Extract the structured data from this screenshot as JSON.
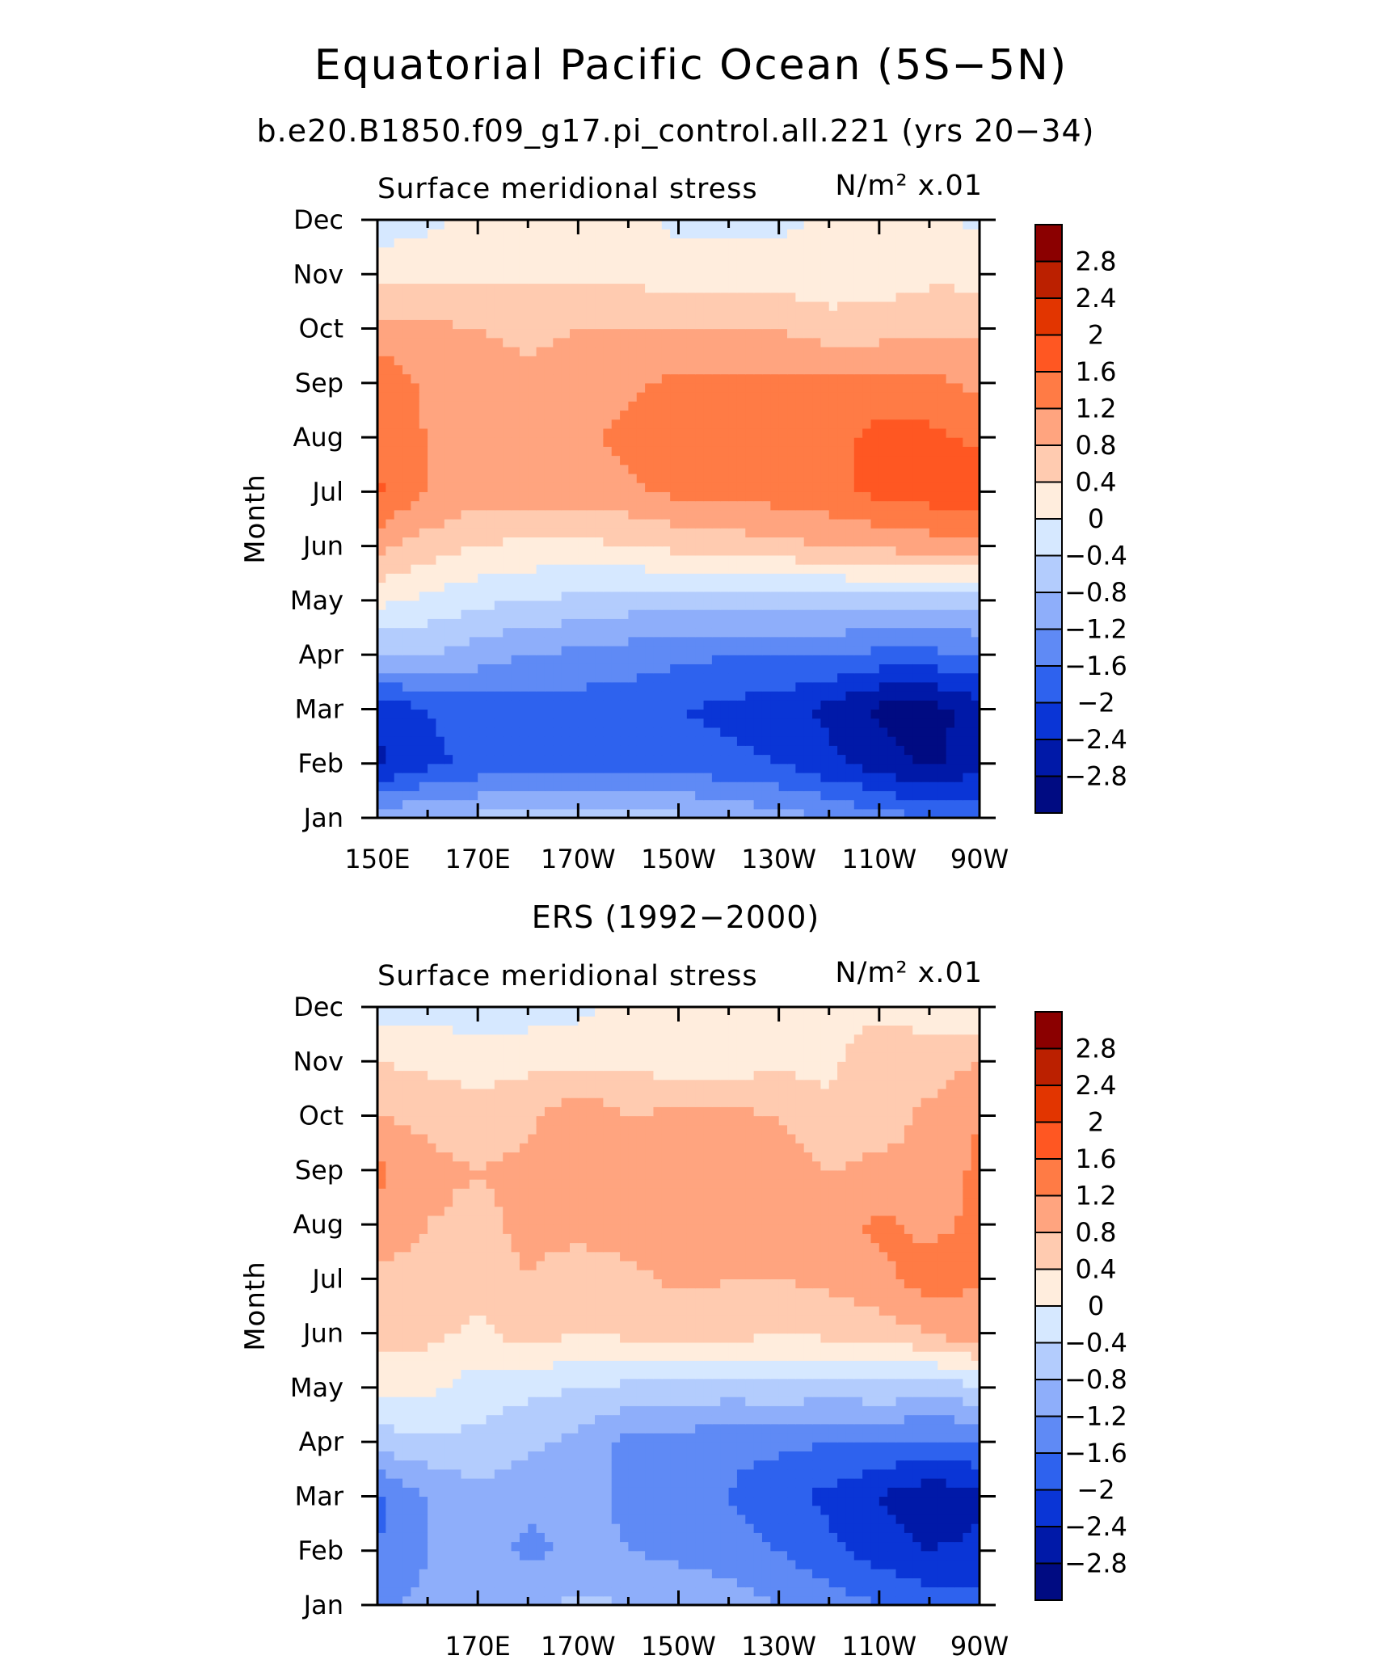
{
  "figure": {
    "title": "Equatorial Pacific Ocean (5S−5N)",
    "subtitle": "b.e20.B1850.f09_g17.pi_control.all.221 (yrs 20−34)",
    "middle_title": "ERS (1992−2000)"
  },
  "colorbar": {
    "levels": [
      "2.8",
      "2.4",
      "2",
      "1.6",
      "1.2",
      "0.8",
      "0.4",
      "0",
      "−0.4",
      "−0.8",
      "−1.2",
      "−1.6",
      "−2",
      "−2.4",
      "−2.8"
    ],
    "colors": [
      "#8b0000",
      "#bb2000",
      "#e23500",
      "#ff5722",
      "#ff7b45",
      "#ffa47f",
      "#ffcbb0",
      "#ffeddd",
      "#d6e8ff",
      "#b3ccfd",
      "#8eaefa",
      "#5f8af5",
      "#2e62ee",
      "#0a35d6",
      "#0019a8",
      "#000b82"
    ]
  },
  "chart_data": [
    {
      "type": "heatmap",
      "title": "Surface meridional stress",
      "units": "N/m² x.01",
      "xlabel": "",
      "ylabel": "Month",
      "x_ticks": [
        "150E",
        "170E",
        "170W",
        "150W",
        "130W",
        "110W",
        "90W"
      ],
      "y_ticks": [
        "Jan",
        "Feb",
        "Mar",
        "Apr",
        "May",
        "Jun",
        "Jul",
        "Aug",
        "Sep",
        "Oct",
        "Nov",
        "Dec"
      ],
      "x_lons": [
        150,
        160,
        170,
        180,
        190,
        200,
        210,
        220,
        230,
        240,
        250,
        260,
        270
      ],
      "rows": [
        [
          -0.9,
          -0.8,
          -0.7,
          -0.6,
          -0.6,
          -0.7,
          -0.7,
          -0.9,
          -1.0,
          -1.2,
          -1.4,
          -1.6,
          -1.8
        ],
        [
          -2.5,
          -2.1,
          -1.9,
          -1.8,
          -1.8,
          -1.8,
          -1.8,
          -1.9,
          -2.0,
          -2.3,
          -2.6,
          -2.9,
          -2.5
        ],
        [
          -2.3,
          -2.0,
          -1.8,
          -1.8,
          -1.8,
          -1.8,
          -2.0,
          -2.1,
          -2.2,
          -2.5,
          -2.9,
          -3.0,
          -2.6
        ],
        [
          -0.8,
          -0.8,
          -1.0,
          -1.2,
          -1.3,
          -1.4,
          -1.5,
          -1.6,
          -1.6,
          -1.6,
          -1.7,
          -1.7,
          -1.6
        ],
        [
          0.1,
          -0.1,
          -0.3,
          -0.4,
          -0.5,
          -0.6,
          -0.6,
          -0.6,
          -0.6,
          -0.6,
          -0.6,
          -0.7,
          -0.6
        ],
        [
          0.9,
          0.6,
          0.4,
          0.3,
          0.3,
          0.4,
          0.5,
          0.6,
          0.7,
          0.8,
          0.9,
          1.0,
          1.0
        ],
        [
          1.7,
          1.2,
          1.0,
          1.0,
          1.0,
          1.1,
          1.3,
          1.3,
          1.4,
          1.5,
          1.7,
          1.8,
          1.9
        ],
        [
          1.4,
          1.2,
          1.1,
          1.1,
          1.1,
          1.3,
          1.5,
          1.6,
          1.6,
          1.5,
          1.7,
          1.7,
          1.5
        ],
        [
          1.5,
          1.1,
          1.0,
          0.9,
          1.0,
          1.1,
          1.3,
          1.3,
          1.3,
          1.3,
          1.4,
          1.3,
          1.1
        ],
        [
          1.0,
          0.9,
          0.8,
          0.7,
          0.8,
          0.8,
          0.8,
          0.8,
          0.8,
          0.6,
          0.6,
          0.7,
          0.7
        ],
        [
          0.2,
          0.3,
          0.3,
          0.3,
          0.3,
          0.3,
          0.2,
          0.2,
          0.2,
          0.1,
          0.2,
          0.3,
          0.3
        ],
        [
          -0.2,
          -0.1,
          0.1,
          0.1,
          0.1,
          0.1,
          -0.1,
          -0.1,
          -0.1,
          0.1,
          0.1,
          0.1,
          -0.1
        ]
      ]
    },
    {
      "type": "heatmap",
      "title": "Surface meridional stress",
      "units": "N/m² x.01",
      "xlabel": "",
      "ylabel": "Month",
      "x_ticks": [
        "170E",
        "170W",
        "150W",
        "130W",
        "110W",
        "90W"
      ],
      "y_ticks": [
        "Jan",
        "Feb",
        "Mar",
        "Apr",
        "May",
        "Jun",
        "Jul",
        "Aug",
        "Sep",
        "Oct",
        "Nov",
        "Dec"
      ],
      "x_lons": [
        150,
        160,
        170,
        180,
        190,
        200,
        210,
        220,
        230,
        240,
        250,
        260,
        270
      ],
      "rows": [
        [
          -1.3,
          -1.1,
          -0.8,
          -0.9,
          -0.7,
          -0.8,
          -0.9,
          -1.0,
          -1.2,
          -1.4,
          -1.6,
          -1.8,
          -1.9
        ],
        [
          -1.6,
          -1.2,
          -1.0,
          -1.3,
          -1.1,
          -1.2,
          -1.3,
          -1.4,
          -1.6,
          -1.9,
          -2.2,
          -2.4,
          -2.3
        ],
        [
          -1.7,
          -1.2,
          -0.9,
          -1.1,
          -1.0,
          -1.3,
          -1.5,
          -1.6,
          -1.9,
          -2.1,
          -2.4,
          -2.7,
          -2.5
        ],
        [
          -0.6,
          -0.5,
          -0.5,
          -0.7,
          -0.9,
          -1.3,
          -1.4,
          -1.5,
          -1.5,
          -1.6,
          -1.6,
          -1.7,
          -1.6
        ],
        [
          0.1,
          0.1,
          -0.2,
          -0.3,
          -0.4,
          -0.5,
          -0.5,
          -0.6,
          -0.5,
          -0.6,
          -0.5,
          -0.6,
          -0.5
        ],
        [
          0.6,
          0.5,
          0.3,
          0.6,
          0.4,
          0.5,
          0.5,
          0.6,
          0.4,
          0.5,
          0.6,
          0.8,
          1.1
        ],
        [
          0.7,
          0.6,
          0.6,
          0.8,
          0.5,
          0.7,
          0.9,
          0.8,
          0.8,
          0.9,
          1.1,
          1.4,
          1.2
        ],
        [
          1.1,
          0.8,
          0.7,
          0.9,
          1.0,
          1.0,
          0.9,
          1.1,
          0.9,
          1.0,
          1.3,
          1.1,
          1.3
        ],
        [
          1.3,
          0.9,
          0.8,
          0.9,
          1.0,
          1.1,
          1.0,
          0.9,
          1.0,
          0.8,
          0.9,
          0.9,
          1.3
        ],
        [
          0.8,
          0.7,
          0.6,
          0.7,
          1.1,
          0.8,
          0.9,
          0.9,
          0.8,
          0.5,
          0.6,
          0.9,
          1.2
        ],
        [
          0.4,
          0.3,
          0.2,
          0.3,
          0.3,
          0.3,
          0.2,
          0.2,
          0.3,
          0.3,
          0.7,
          0.6,
          0.8
        ],
        [
          -0.2,
          -0.1,
          -0.3,
          -0.2,
          -0.1,
          0.1,
          0.1,
          0.1,
          0.1,
          0.2,
          0.3,
          0.2,
          0.1
        ]
      ]
    }
  ]
}
